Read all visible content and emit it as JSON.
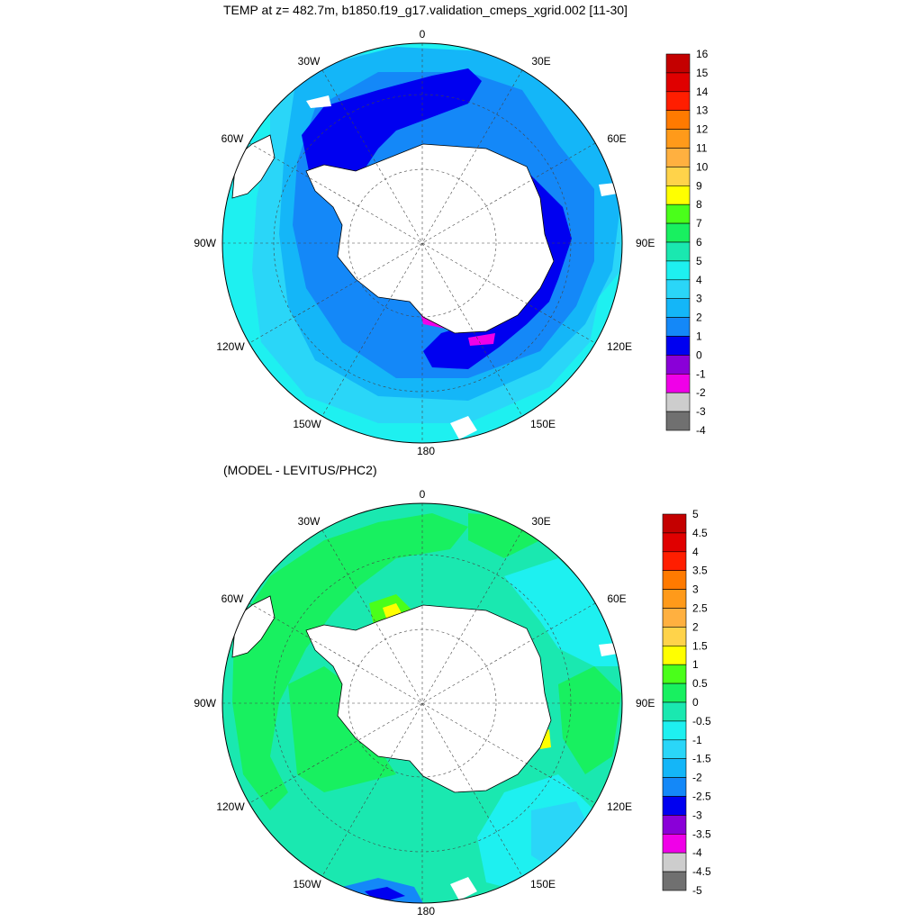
{
  "top_panel": {
    "title": "TEMP at z= 482.7m, b1850.f19_g17.validation_cmeps_xgrid.002 [11-30]",
    "colorbar_labels": [
      "16",
      "15",
      "14",
      "13",
      "12",
      "11",
      "10",
      "9",
      "8",
      "7",
      "6",
      "5",
      "4",
      "3",
      "2",
      "1",
      "0",
      "-1",
      "-2",
      "-3",
      "-4"
    ],
    "colorbar_colors": [
      "#c40000",
      "#e00000",
      "#ff1e00",
      "#ff7a00",
      "#ff9a1a",
      "#ffb040",
      "#ffd34a",
      "#ffff00",
      "#4aff1a",
      "#18f060",
      "#1ae8b0",
      "#1ef0f0",
      "#2ad6f8",
      "#14b6f8",
      "#1488f8",
      "#0000f0",
      "#8a00d8",
      "#f000e8",
      "#cdcdcd",
      "#707070"
    ]
  },
  "bottom_panel": {
    "title": "(MODEL - LEVITUS/PHC2)",
    "colorbar_labels": [
      "5",
      "4.5",
      "4",
      "3.5",
      "3",
      "2.5",
      "2",
      "1.5",
      "1",
      "0.5",
      "0",
      "-0.5",
      "-1",
      "-1.5",
      "-2",
      "-2.5",
      "-3",
      "-3.5",
      "-4",
      "-4.5",
      "-5"
    ],
    "colorbar_colors": [
      "#c40000",
      "#e00000",
      "#ff1e00",
      "#ff7a00",
      "#ff9a1a",
      "#ffb040",
      "#ffd34a",
      "#ffff00",
      "#4aff1a",
      "#18f060",
      "#1ae8b0",
      "#1ef0f0",
      "#2ad6f8",
      "#14b6f8",
      "#1488f8",
      "#0000f0",
      "#8a00d8",
      "#f000e8",
      "#cdcdcd",
      "#707070"
    ]
  },
  "map_labels": {
    "lon_0": "0",
    "lon_30e": "30E",
    "lon_60e": "60E",
    "lon_90e": "90E",
    "lon_120e": "120E",
    "lon_150e": "150E",
    "lon_180": "180",
    "lon_150w": "150W",
    "lon_120w": "120W",
    "lon_90w": "90W",
    "lon_60w": "60W",
    "lon_30w": "30W"
  },
  "colors": {
    "land": "#ffffff",
    "outline": "#000000"
  }
}
